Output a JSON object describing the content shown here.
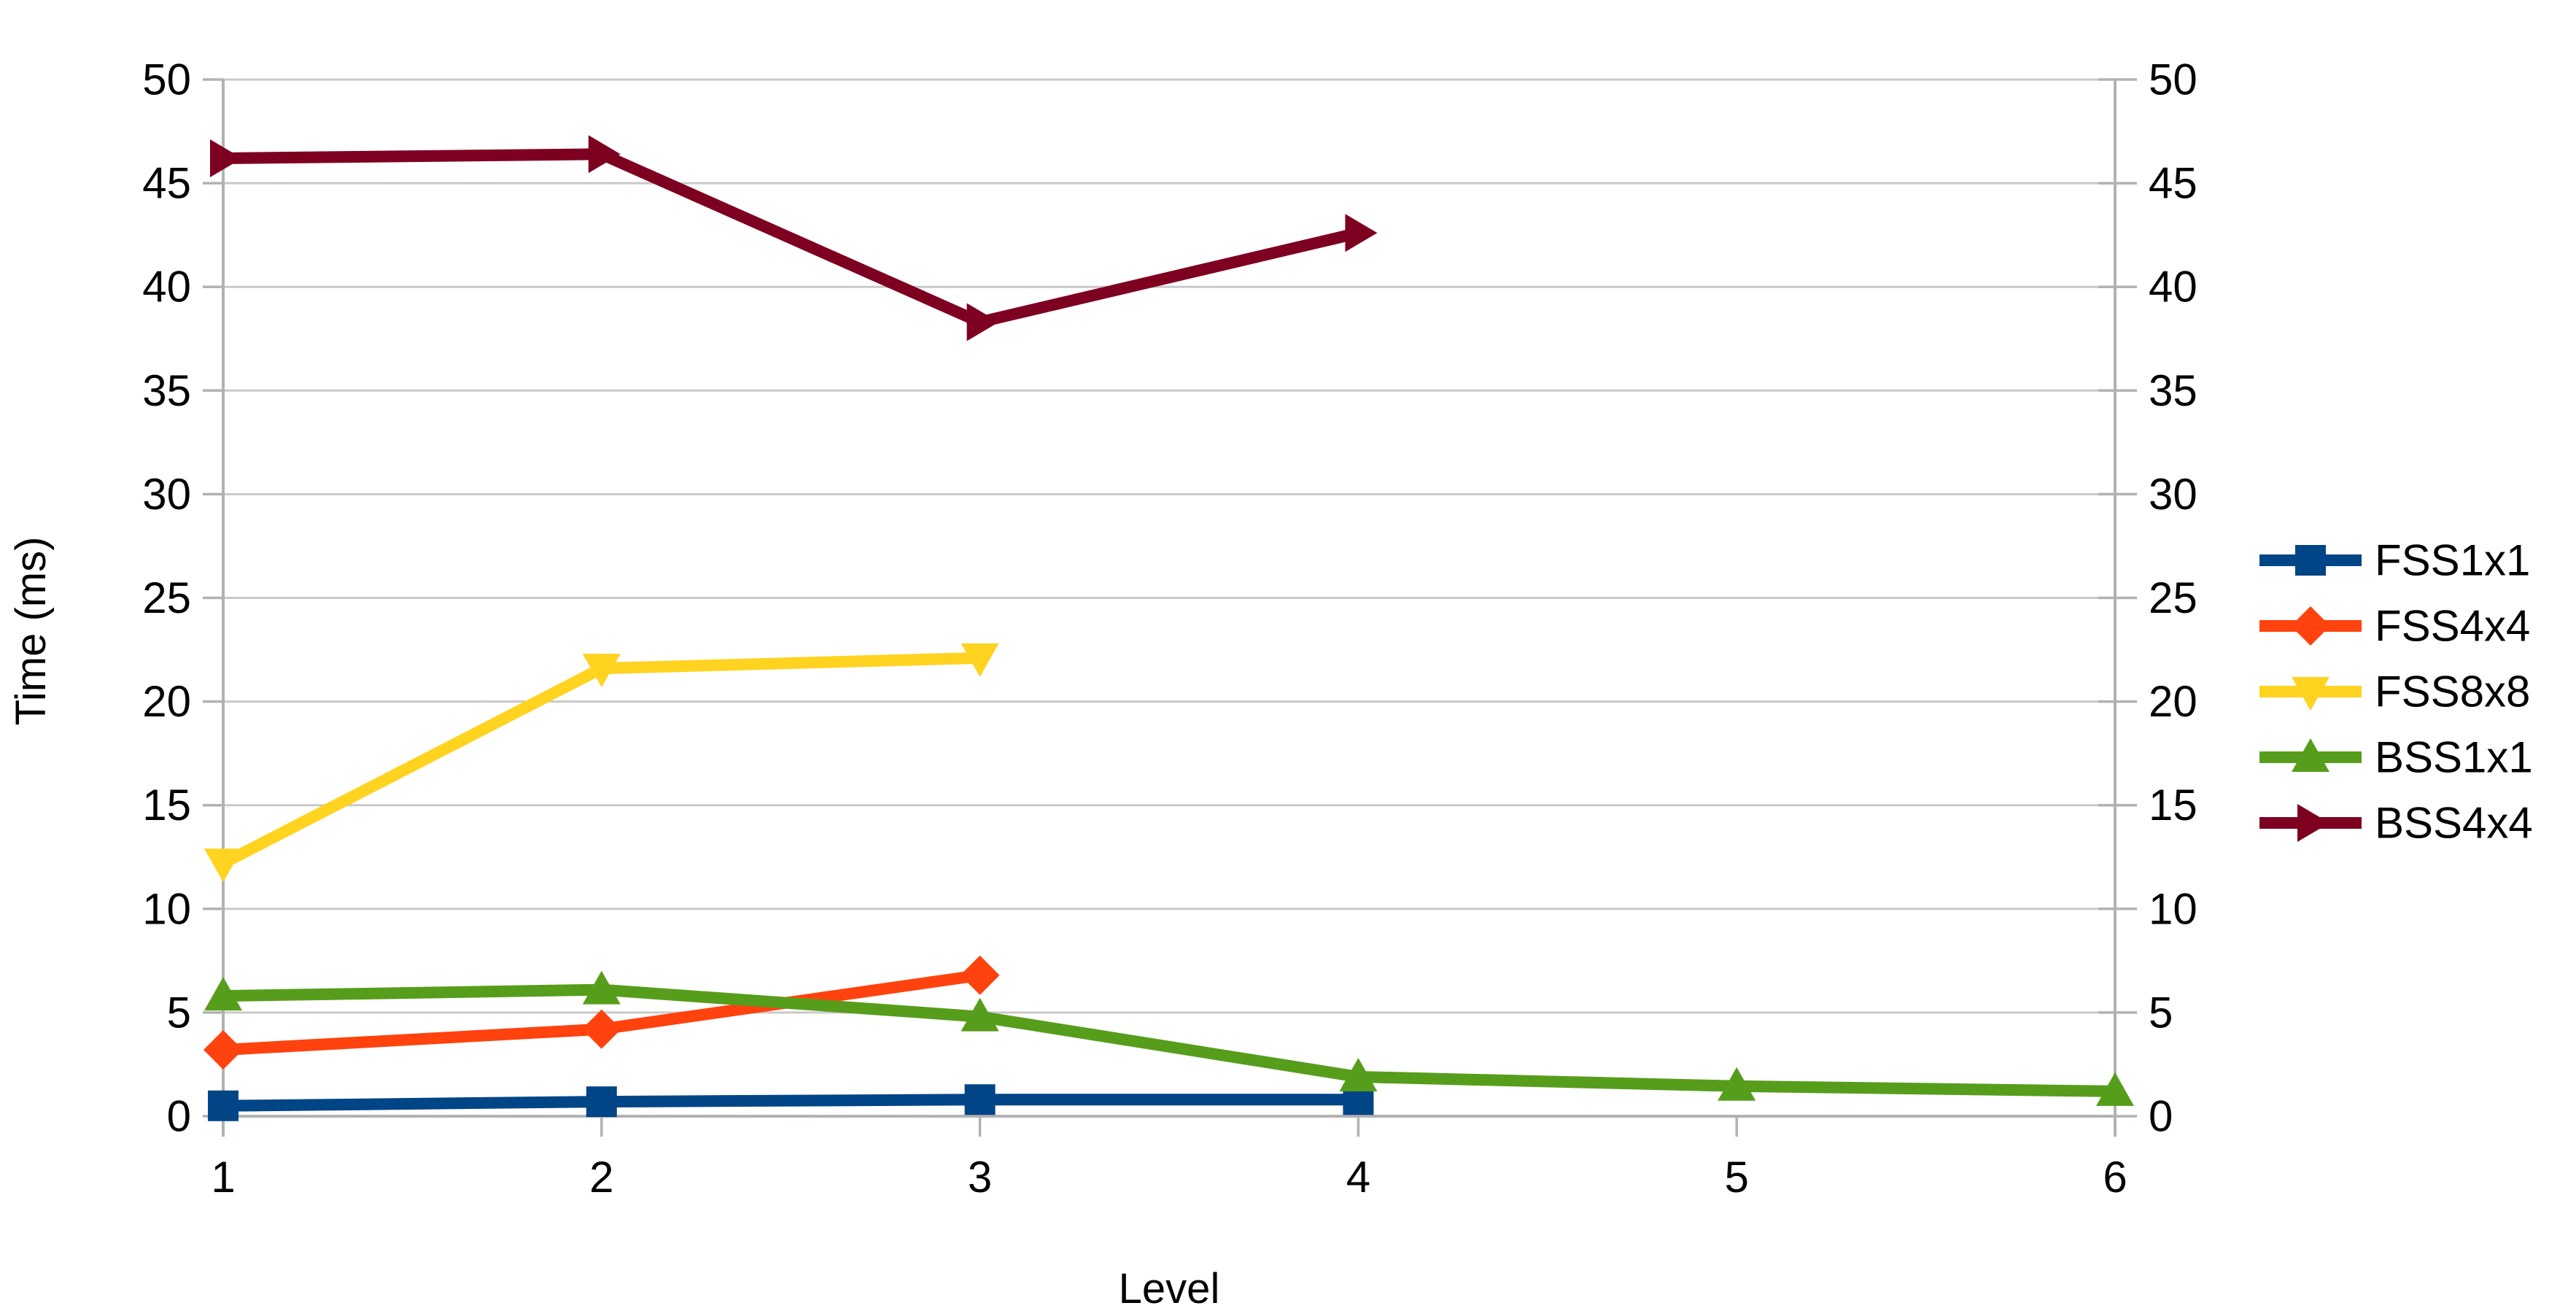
{
  "chart_data": {
    "type": "line",
    "title": "",
    "xlabel": "Level",
    "ylabel": "Time (ms)",
    "xlim": [
      1,
      6
    ],
    "ylim": [
      0,
      50
    ],
    "x_ticks": [
      1,
      2,
      3,
      4,
      5,
      6
    ],
    "y_ticks": [
      0,
      5,
      10,
      15,
      20,
      25,
      30,
      35,
      40,
      45,
      50
    ],
    "grid": "horizontal",
    "dual_y_axis": true,
    "legend_position": "right",
    "colors": {
      "axis": "#b2b2b2",
      "gridline": "#c9c9c9",
      "text": "#000000",
      "background": "#ffffff"
    },
    "series": [
      {
        "name": "FSS1x1",
        "color": "#004586",
        "marker": "square",
        "x": [
          1,
          2,
          3,
          4
        ],
        "values": [
          0.5,
          0.7,
          0.8,
          0.8
        ]
      },
      {
        "name": "FSS4x4",
        "color": "#FF420E",
        "marker": "diamond",
        "x": [
          1,
          2,
          3
        ],
        "values": [
          3.2,
          4.2,
          6.8
        ]
      },
      {
        "name": "FSS8x8",
        "color": "#FFD320",
        "marker": "triangle-down",
        "x": [
          1,
          2,
          3
        ],
        "values": [
          12.2,
          21.6,
          22.1
        ]
      },
      {
        "name": "BSS1x1",
        "color": "#579D1C",
        "marker": "triangle-up",
        "x": [
          1,
          2,
          3,
          4,
          5,
          6
        ],
        "values": [
          5.8,
          6.1,
          4.8,
          1.9,
          1.45,
          1.2
        ]
      },
      {
        "name": "BSS4x4",
        "color": "#7E0021",
        "marker": "triangle-right",
        "x": [
          1,
          2,
          3,
          4
        ],
        "values": [
          46.2,
          46.4,
          38.3,
          42.6
        ]
      }
    ]
  }
}
